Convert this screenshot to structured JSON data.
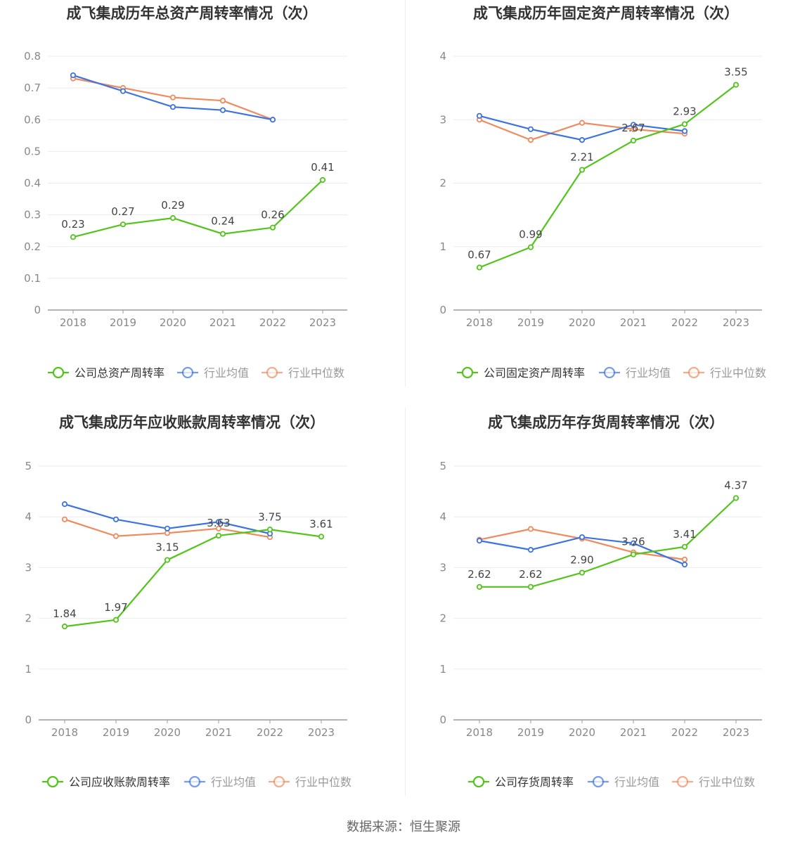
{
  "footer": "数据来源：恒生聚源",
  "colors": {
    "company": "#52c41a",
    "avg": "#3b73e0",
    "median": "#f08a5d"
  },
  "chart_data": [
    {
      "type": "line",
      "title": "成飞集成历年总资产周转率情况（次）",
      "categories": [
        "2018",
        "2019",
        "2020",
        "2021",
        "2022",
        "2023"
      ],
      "ylim": [
        0,
        0.8
      ],
      "yticks": [
        "0",
        "0.1",
        "0.2",
        "0.3",
        "0.4",
        "0.5",
        "0.6",
        "0.7",
        "0.8"
      ],
      "series": [
        {
          "name": "公司总资产周转率",
          "values": [
            0.23,
            0.27,
            0.29,
            0.24,
            0.26,
            0.41
          ],
          "labels": [
            "0.23",
            "0.27",
            "0.29",
            "0.24",
            "0.26",
            "0.41"
          ]
        },
        {
          "name": "行业均值",
          "values": [
            0.74,
            0.69,
            0.64,
            0.63,
            0.6,
            null
          ]
        },
        {
          "name": "行业中位数",
          "values": [
            0.73,
            0.7,
            0.67,
            0.66,
            0.6,
            null
          ]
        }
      ],
      "legend": "bottom"
    },
    {
      "type": "line",
      "title": "成飞集成历年固定资产周转率情况（次）",
      "categories": [
        "2018",
        "2019",
        "2020",
        "2021",
        "2022",
        "2023"
      ],
      "ylim": [
        0,
        4
      ],
      "yticks": [
        "0",
        "1",
        "2",
        "3",
        "4"
      ],
      "series": [
        {
          "name": "公司固定资产周转率",
          "values": [
            0.67,
            0.99,
            2.21,
            2.67,
            2.93,
            3.55
          ],
          "labels": [
            "0.67",
            "0.99",
            "2.21",
            "2.67",
            "2.93",
            "3.55"
          ]
        },
        {
          "name": "行业均值",
          "values": [
            3.06,
            2.85,
            2.68,
            2.92,
            2.82,
            null
          ]
        },
        {
          "name": "行业中位数",
          "values": [
            3.0,
            2.68,
            2.95,
            2.85,
            2.78,
            null
          ]
        }
      ],
      "legend": "bottom"
    },
    {
      "type": "line",
      "title": "成飞集成历年应收账款周转率情况（次）",
      "categories": [
        "2018",
        "2019",
        "2020",
        "2021",
        "2022",
        "2023"
      ],
      "ylim": [
        0,
        5
      ],
      "yticks": [
        "0",
        "1",
        "2",
        "3",
        "4",
        "5"
      ],
      "series": [
        {
          "name": "公司应收账款周转率",
          "values": [
            1.84,
            1.97,
            3.15,
            3.63,
            3.75,
            3.61
          ],
          "labels": [
            "1.84",
            "1.97",
            "3.15",
            "3.63",
            "3.75",
            "3.61"
          ]
        },
        {
          "name": "行业均值",
          "values": [
            4.25,
            3.95,
            3.77,
            3.9,
            3.67,
            null
          ]
        },
        {
          "name": "行业中位数",
          "values": [
            3.95,
            3.62,
            3.68,
            3.77,
            3.6,
            null
          ]
        }
      ],
      "legend": "bottom"
    },
    {
      "type": "line",
      "title": "成飞集成历年存货周转率情况（次）",
      "categories": [
        "2018",
        "2019",
        "2020",
        "2021",
        "2022",
        "2023"
      ],
      "ylim": [
        0,
        5
      ],
      "yticks": [
        "0",
        "1",
        "2",
        "3",
        "4",
        "5"
      ],
      "series": [
        {
          "name": "公司存货周转率",
          "values": [
            2.62,
            2.62,
            2.9,
            3.26,
            3.41,
            4.37
          ],
          "labels": [
            "2.62",
            "2.62",
            "2.90",
            "3.26",
            "3.41",
            "4.37"
          ]
        },
        {
          "name": "行业均值",
          "values": [
            3.53,
            3.35,
            3.6,
            3.48,
            3.06,
            null
          ]
        },
        {
          "name": "行业中位数",
          "values": [
            3.55,
            3.76,
            3.57,
            3.3,
            3.16,
            null
          ]
        }
      ],
      "legend": "bottom"
    }
  ]
}
